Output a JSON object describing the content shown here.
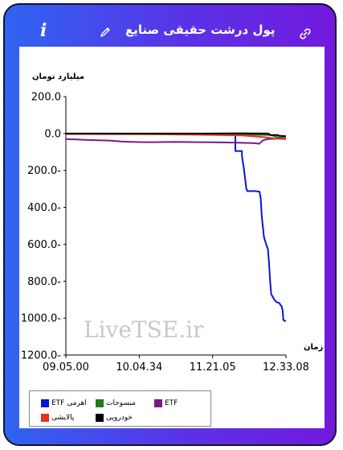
{
  "header": {
    "title": "پول درشت حقیقی صنایع",
    "info_icon": "i"
  },
  "chart_data": {
    "type": "line",
    "ylabel": "میلیارد تومان",
    "xlabel": "زمان",
    "watermark": "LiveTSE.ir",
    "x_ticks": [
      "09.05.00",
      "10.04.34",
      "11.21.05",
      "12.33.08"
    ],
    "y_ticks": [
      "200.0",
      "0.0",
      "200.0-",
      "400.0-",
      "600.0-",
      "800.0-",
      "1000.0-",
      "1200.0-"
    ],
    "ylim": [
      -1200,
      200
    ],
    "xlim": [
      0,
      100
    ],
    "grid": false,
    "legend_position": "bottom-left",
    "series": [
      {
        "name": "ETF اهرمی",
        "color": "#0a14d6",
        "points": [
          [
            0,
            -2
          ],
          [
            60,
            -3
          ],
          [
            76,
            -4
          ],
          [
            77,
            -4
          ],
          [
            77,
            -95
          ],
          [
            80,
            -95
          ],
          [
            80,
            -120
          ],
          [
            81,
            -200
          ],
          [
            82,
            -300
          ],
          [
            82.5,
            -312
          ],
          [
            86,
            -312
          ],
          [
            88,
            -315
          ],
          [
            88.5,
            -350
          ],
          [
            89,
            -450
          ],
          [
            90,
            -560
          ],
          [
            91,
            -600
          ],
          [
            91.8,
            -625
          ],
          [
            92.3,
            -700
          ],
          [
            92.8,
            -800
          ],
          [
            93.3,
            -870
          ],
          [
            94.5,
            -895
          ],
          [
            95,
            -905
          ],
          [
            96,
            -915
          ],
          [
            97,
            -918
          ],
          [
            97.5,
            -930
          ],
          [
            98,
            -935
          ],
          [
            98.5,
            -960
          ],
          [
            98.8,
            -1010
          ],
          [
            99.5,
            -1015
          ],
          [
            100,
            -1015
          ]
        ]
      },
      {
        "name": "منسوجات",
        "color": "#1a7d1a",
        "points": [
          [
            0,
            -2
          ],
          [
            50,
            -3
          ],
          [
            75,
            -4
          ],
          [
            84,
            -6
          ],
          [
            93,
            -8
          ],
          [
            95,
            -15
          ],
          [
            96,
            -20
          ],
          [
            100,
            -25
          ]
        ]
      },
      {
        "name": "ETF",
        "color": "#7a1a86",
        "points": [
          [
            0,
            -30
          ],
          [
            5,
            -32
          ],
          [
            10,
            -35
          ],
          [
            20,
            -38
          ],
          [
            25,
            -43
          ],
          [
            30,
            -45
          ],
          [
            35,
            -47
          ],
          [
            40,
            -47
          ],
          [
            50,
            -45
          ],
          [
            60,
            -47
          ],
          [
            70,
            -48
          ],
          [
            78,
            -50
          ],
          [
            85,
            -52
          ],
          [
            88,
            -55
          ],
          [
            89,
            -42
          ],
          [
            90,
            -35
          ],
          [
            92,
            -30
          ],
          [
            96,
            -28
          ],
          [
            100,
            -25
          ]
        ]
      },
      {
        "name": "پالایشی",
        "color": "#e8301c",
        "points": [
          [
            0,
            -3
          ],
          [
            40,
            -4
          ],
          [
            70,
            -8
          ],
          [
            80,
            -10
          ],
          [
            85,
            -15
          ],
          [
            90,
            -20
          ],
          [
            95,
            -27
          ],
          [
            100,
            -30
          ]
        ]
      },
      {
        "name": "خودرویی",
        "color": "#000000",
        "points": [
          [
            0,
            0
          ],
          [
            60,
            0
          ],
          [
            80,
            1
          ],
          [
            92,
            0
          ],
          [
            93,
            -8
          ],
          [
            96,
            -8
          ],
          [
            97,
            -12
          ],
          [
            100,
            -15
          ]
        ]
      }
    ]
  }
}
